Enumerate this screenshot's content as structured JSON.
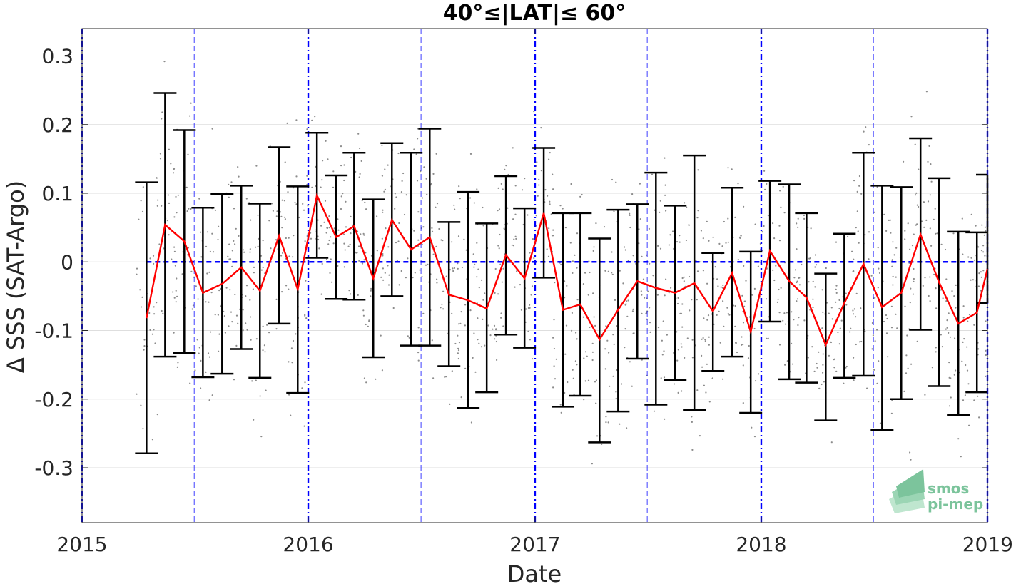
{
  "chart_data": {
    "type": "line",
    "title": "40°≤|LAT|≤ 60°",
    "xlabel": "Date",
    "ylabel": "Δ SSS (SAT-Argo)",
    "x_ticks": [
      "2015",
      "2016",
      "2017",
      "2018",
      "2019"
    ],
    "y_ticks": [
      "0.3",
      "0.2",
      "0.1",
      "0",
      "-0.1",
      "-0.2",
      "-0.3"
    ],
    "xlim": [
      "2015-01-01",
      "2019-01-01"
    ],
    "ylim": [
      -0.38,
      0.34
    ],
    "grid": true,
    "zero_line": 0,
    "year_lines": [
      "2015-01-01",
      "2016-01-01",
      "2017-01-01",
      "2018-01-01",
      "2019-01-01"
    ],
    "half_year_lines": [
      "2015-07-01",
      "2016-07-01",
      "2017-07-01",
      "2018-07-01"
    ],
    "series": [
      {
        "x": [
          "2015-04-15",
          "2015-05-15",
          "2015-06-15",
          "2015-07-15",
          "2015-08-15",
          "2015-09-15",
          "2015-10-15",
          "2015-11-15",
          "2015-12-15",
          "2016-01-15",
          "2016-02-15",
          "2016-03-15",
          "2016-04-15",
          "2016-05-15",
          "2016-06-15",
          "2016-07-15",
          "2016-08-15",
          "2016-09-15",
          "2016-10-15",
          "2016-11-15",
          "2016-12-15",
          "2017-01-15",
          "2017-02-15",
          "2017-03-15",
          "2017-04-15",
          "2017-05-15",
          "2017-06-15",
          "2017-07-15",
          "2017-08-15",
          "2017-09-15",
          "2017-10-15",
          "2017-11-15",
          "2017-12-15",
          "2018-01-15",
          "2018-02-15",
          "2018-03-15",
          "2018-04-15",
          "2018-05-15",
          "2018-06-15",
          "2018-07-15",
          "2018-08-15",
          "2018-09-15",
          "2018-10-15",
          "2018-11-15",
          "2018-12-15",
          "2019-01-01"
        ],
        "mean": [
          -0.082,
          0.054,
          0.03,
          -0.045,
          -0.032,
          -0.008,
          -0.042,
          0.038,
          -0.04,
          0.097,
          0.036,
          0.052,
          -0.024,
          0.061,
          0.018,
          0.036,
          -0.048,
          -0.056,
          -0.068,
          0.01,
          -0.024,
          0.071,
          -0.07,
          -0.062,
          -0.113,
          -0.07,
          -0.028,
          -0.038,
          -0.045,
          -0.031,
          -0.072,
          -0.016,
          -0.102,
          0.016,
          -0.028,
          -0.052,
          -0.121,
          -0.06,
          -0.003,
          -0.066,
          -0.045,
          0.04,
          -0.03,
          -0.09,
          -0.074,
          -0.01
        ],
        "upper": [
          0.116,
          0.246,
          0.192,
          0.079,
          0.099,
          0.111,
          0.085,
          0.167,
          0.11,
          0.188,
          0.126,
          0.159,
          0.091,
          0.173,
          0.159,
          0.194,
          0.058,
          0.102,
          0.056,
          0.125,
          0.078,
          0.166,
          0.071,
          0.071,
          0.034,
          0.076,
          0.084,
          0.13,
          0.082,
          0.155,
          0.013,
          0.108,
          0.015,
          0.118,
          0.113,
          0.071,
          -0.017,
          0.041,
          0.159,
          0.111,
          0.109,
          0.18,
          0.122,
          0.044,
          0.043,
          0.127
        ],
        "lower": [
          -0.279,
          -0.138,
          -0.133,
          -0.168,
          -0.163,
          -0.127,
          -0.169,
          -0.09,
          -0.191,
          0.006,
          -0.054,
          -0.055,
          -0.139,
          -0.05,
          -0.122,
          -0.122,
          -0.152,
          -0.213,
          -0.19,
          -0.106,
          -0.125,
          -0.023,
          -0.211,
          -0.195,
          -0.263,
          -0.218,
          -0.141,
          -0.208,
          -0.172,
          -0.216,
          -0.159,
          -0.138,
          -0.22,
          -0.087,
          -0.171,
          -0.176,
          -0.231,
          -0.169,
          -0.166,
          -0.245,
          -0.2,
          -0.099,
          -0.181,
          -0.223,
          -0.19,
          -0.06
        ]
      }
    ],
    "colors": {
      "mean_line": "#ff0000",
      "error_bars": "#000000",
      "reference_lines": "#0000ff",
      "scatter": "#8c8c8c",
      "grid": "#dedede"
    }
  },
  "logo": {
    "line1": "smos",
    "line2": "pi-mep",
    "color": "#7cc49c"
  }
}
